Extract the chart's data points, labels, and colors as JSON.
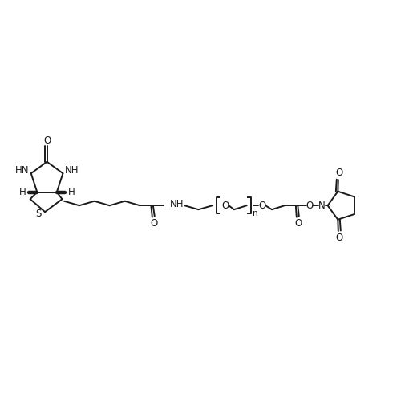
{
  "bg_color": "#ffffff",
  "line_color": "#1a1a1a",
  "line_width": 1.4,
  "font_size": 8.5,
  "fig_size": [
    5.0,
    5.0
  ],
  "dpi": 100,
  "xlim": [
    0,
    10
  ],
  "ylim": [
    0,
    10
  ]
}
